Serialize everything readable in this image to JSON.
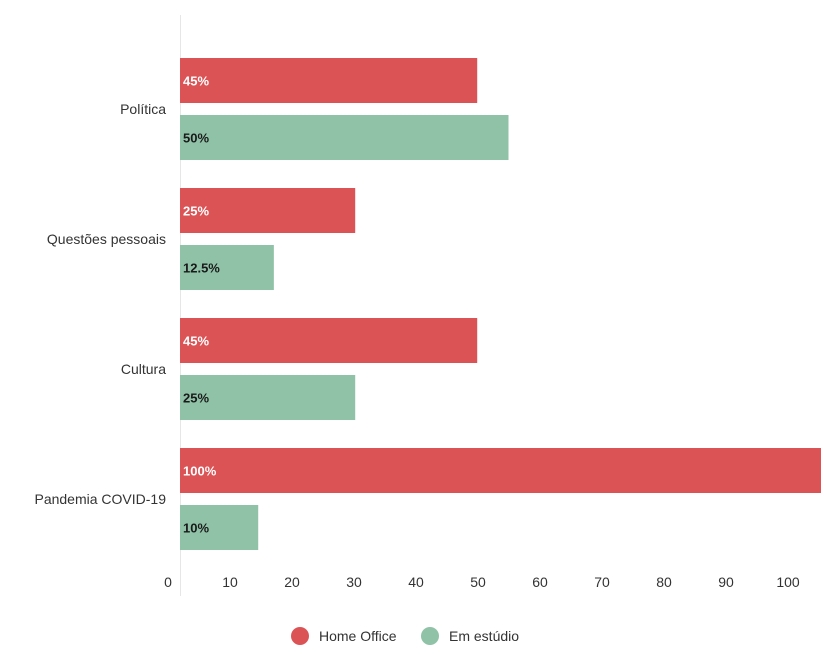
{
  "chart_data": {
    "type": "bar",
    "orientation": "horizontal",
    "categories": [
      "Política",
      "Questões pessoais",
      "Cultura",
      "Pandemia COVID-19"
    ],
    "series": [
      {
        "name": "Home Office",
        "color": "#dc5356",
        "values": [
          47.5,
          28,
          47.5,
          103
        ],
        "labels": [
          "45%",
          "25%",
          "45%",
          "100%"
        ],
        "label_color": "#ffffff"
      },
      {
        "name": "Em estúdio",
        "color": "#8fc2a7",
        "values": [
          52.5,
          15,
          28,
          12.5
        ],
        "labels": [
          "50%",
          "12.5%",
          "25%",
          "10%"
        ],
        "label_color": "#1a1a1a"
      }
    ],
    "xticks": [
      0,
      10,
      20,
      30,
      40,
      50,
      60,
      70,
      80,
      90,
      100
    ],
    "xlim": [
      0,
      100
    ],
    "grid": false,
    "legend_position": "bottom"
  }
}
